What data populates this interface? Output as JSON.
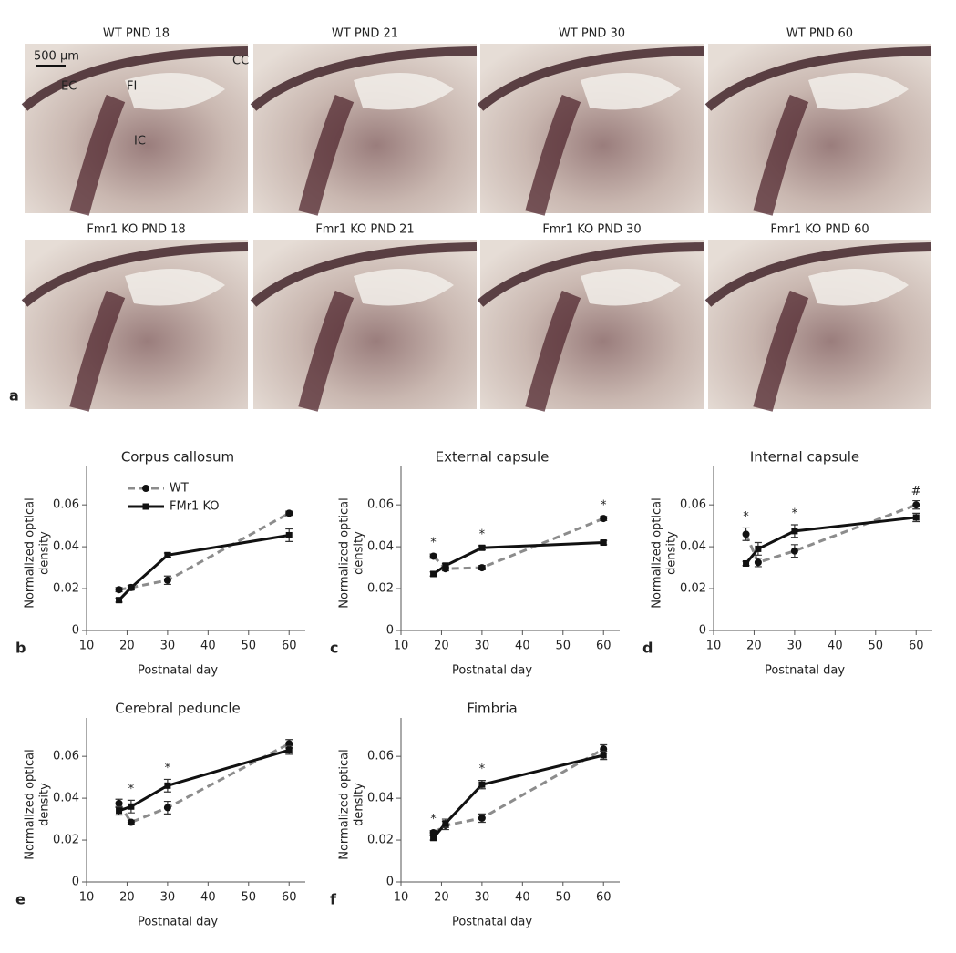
{
  "panel_a": {
    "letter": "a",
    "panels": [
      {
        "label": "WT PND 18"
      },
      {
        "label": "WT PND 21"
      },
      {
        "label": "WT PND 30"
      },
      {
        "label": "WT PND 60"
      },
      {
        "label": "Fmr1 KO PND 18"
      },
      {
        "label": "Fmr1 KO PND 21"
      },
      {
        "label": "Fmr1 KO PND 30"
      },
      {
        "label": "Fmr1 KO PND 60"
      }
    ],
    "scale_bar": "500 µm",
    "regions": [
      {
        "text": "EC",
        "color": "#2e8b2e"
      },
      {
        "text": "FI",
        "color": "#2f7fd6"
      },
      {
        "text": "IC",
        "color": "#e6d21a"
      },
      {
        "text": "CC",
        "color": "#e03030"
      }
    ]
  },
  "chart_data": [
    {
      "type": "line",
      "letter": "b",
      "title": "Corpus callosum",
      "xlabel": "Postnatal day",
      "ylabel": [
        "Normalized optical",
        "density"
      ],
      "x": [
        18,
        21,
        30,
        60
      ],
      "xlim": [
        10,
        64
      ],
      "xticks": [
        10,
        20,
        30,
        40,
        50,
        60
      ],
      "ylim": [
        0,
        0.074
      ],
      "yticks": [
        0,
        0.02,
        0.04,
        0.06
      ],
      "legend": "upper left",
      "series": [
        {
          "name": "WT",
          "color": "#8c8c8c",
          "dash": true,
          "marker": "circle",
          "values": [
            0.0195,
            0.0205,
            0.024,
            0.056
          ],
          "errors": [
            0.001,
            0.001,
            0.002,
            0.001
          ]
        },
        {
          "name": "FMr1 KO",
          "color": "#111111",
          "dash": false,
          "marker": "square",
          "values": [
            0.0145,
            0.0205,
            0.036,
            0.0455
          ],
          "errors": [
            0.001,
            0.001,
            0.001,
            0.003
          ]
        }
      ],
      "annotations": []
    },
    {
      "type": "line",
      "letter": "c",
      "title": "External capsule",
      "xlabel": "Postnatal day",
      "ylabel": [
        "Normalized optical",
        "density"
      ],
      "x": [
        18,
        21,
        30,
        60
      ],
      "xlim": [
        10,
        64
      ],
      "xticks": [
        10,
        20,
        30,
        40,
        50,
        60
      ],
      "ylim": [
        0,
        0.074
      ],
      "yticks": [
        0,
        0.02,
        0.04,
        0.06
      ],
      "series": [
        {
          "name": "WT",
          "color": "#8c8c8c",
          "dash": true,
          "marker": "circle",
          "values": [
            0.0355,
            0.0295,
            0.03,
            0.0535
          ],
          "errors": [
            0.001,
            0.001,
            0.001,
            0.001
          ]
        },
        {
          "name": "FMr1 KO",
          "color": "#111111",
          "dash": false,
          "marker": "square",
          "values": [
            0.027,
            0.031,
            0.0395,
            0.042
          ],
          "errors": [
            0.001,
            0.001,
            0.001,
            0.001
          ]
        }
      ],
      "annotations": [
        {
          "x": 18,
          "text": "*"
        },
        {
          "x": 30,
          "text": "*"
        },
        {
          "x": 60,
          "text": "*"
        }
      ]
    },
    {
      "type": "line",
      "letter": "d",
      "title": "Internal capsule",
      "xlabel": "Postnatal day",
      "ylabel": [
        "Normalized optical",
        "density"
      ],
      "x": [
        18,
        21,
        30,
        60
      ],
      "xlim": [
        10,
        64
      ],
      "xticks": [
        10,
        20,
        30,
        40,
        50,
        60
      ],
      "ylim": [
        0,
        0.074
      ],
      "yticks": [
        0,
        0.02,
        0.04,
        0.06
      ],
      "series": [
        {
          "name": "WT",
          "color": "#8c8c8c",
          "dash": true,
          "marker": "circle",
          "values": [
            0.046,
            0.0325,
            0.038,
            0.06
          ],
          "errors": [
            0.003,
            0.002,
            0.003,
            0.002
          ]
        },
        {
          "name": "FMr1 KO",
          "color": "#111111",
          "dash": false,
          "marker": "square",
          "values": [
            0.032,
            0.039,
            0.0475,
            0.054
          ],
          "errors": [
            0.001,
            0.003,
            0.003,
            0.002
          ]
        }
      ],
      "annotations": [
        {
          "x": 18,
          "text": "*"
        },
        {
          "x": 30,
          "text": "*"
        },
        {
          "x": 60,
          "text": "#"
        }
      ]
    },
    {
      "type": "line",
      "letter": "e",
      "title": "Cerebral peduncle",
      "xlabel": "Postnatal day",
      "ylabel": [
        "Normalized optical",
        "density"
      ],
      "x": [
        18,
        21,
        30,
        60
      ],
      "xlim": [
        10,
        64
      ],
      "xticks": [
        10,
        20,
        30,
        40,
        50,
        60
      ],
      "ylim": [
        0,
        0.074
      ],
      "yticks": [
        0,
        0.02,
        0.04,
        0.06
      ],
      "series": [
        {
          "name": "WT",
          "color": "#8c8c8c",
          "dash": true,
          "marker": "circle",
          "values": [
            0.0375,
            0.0285,
            0.0355,
            0.066
          ],
          "errors": [
            0.002,
            0.001,
            0.003,
            0.002
          ]
        },
        {
          "name": "FMr1 KO",
          "color": "#111111",
          "dash": false,
          "marker": "square",
          "values": [
            0.034,
            0.036,
            0.046,
            0.063
          ],
          "errors": [
            0.002,
            0.003,
            0.003,
            0.002
          ]
        }
      ],
      "annotations": [
        {
          "x": 21,
          "text": "*"
        },
        {
          "x": 30,
          "text": "*"
        }
      ]
    },
    {
      "type": "line",
      "letter": "f",
      "title": "Fimbria",
      "xlabel": "Postnatal day",
      "ylabel": [
        "Normalized optical",
        "density"
      ],
      "x": [
        18,
        21,
        30,
        60
      ],
      "xlim": [
        10,
        64
      ],
      "xticks": [
        10,
        20,
        30,
        40,
        50,
        60
      ],
      "ylim": [
        0,
        0.074
      ],
      "yticks": [
        0,
        0.02,
        0.04,
        0.06
      ],
      "series": [
        {
          "name": "WT",
          "color": "#8c8c8c",
          "dash": true,
          "marker": "circle",
          "values": [
            0.0235,
            0.027,
            0.0305,
            0.0635
          ],
          "errors": [
            0.001,
            0.002,
            0.002,
            0.002
          ]
        },
        {
          "name": "FMr1 KO",
          "color": "#111111",
          "dash": false,
          "marker": "square",
          "values": [
            0.021,
            0.028,
            0.0465,
            0.0605
          ],
          "errors": [
            0.001,
            0.002,
            0.002,
            0.002
          ]
        }
      ],
      "annotations": [
        {
          "x": 18,
          "text": "*"
        },
        {
          "x": 30,
          "text": "*"
        }
      ]
    }
  ]
}
